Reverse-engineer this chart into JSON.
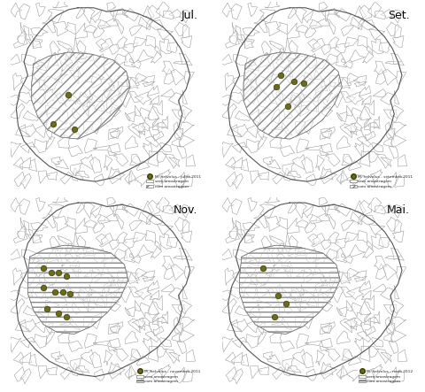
{
  "panels": [
    {
      "title": "Jul.",
      "legend_label": "M. helvolus - julho 2011",
      "points": [
        [
          0.3,
          0.52
        ],
        [
          0.22,
          0.37
        ],
        [
          0.33,
          0.34
        ]
      ],
      "hatch_style": "///",
      "hatch_region": "diagonal"
    },
    {
      "title": "Set.",
      "legend_label": "M. helvolus - setembro 2011",
      "points": [
        [
          0.3,
          0.62
        ],
        [
          0.37,
          0.59
        ],
        [
          0.42,
          0.58
        ],
        [
          0.28,
          0.56
        ],
        [
          0.34,
          0.46
        ]
      ],
      "hatch_style": "///",
      "hatch_region": "diagonal"
    },
    {
      "title": "Nov.",
      "legend_label": "M. helvolus - novembro 2011",
      "points": [
        [
          0.17,
          0.63
        ],
        [
          0.21,
          0.61
        ],
        [
          0.25,
          0.61
        ],
        [
          0.29,
          0.59
        ],
        [
          0.17,
          0.53
        ],
        [
          0.23,
          0.51
        ],
        [
          0.27,
          0.51
        ],
        [
          0.31,
          0.5
        ],
        [
          0.19,
          0.42
        ],
        [
          0.25,
          0.4
        ],
        [
          0.29,
          0.38
        ]
      ],
      "hatch_style": "===",
      "hatch_region": "horizontal"
    },
    {
      "title": "Mai.",
      "legend_label": "M. helvolus - maio 2012",
      "points": [
        [
          0.21,
          0.63
        ],
        [
          0.29,
          0.49
        ],
        [
          0.33,
          0.45
        ],
        [
          0.27,
          0.38
        ]
      ],
      "hatch_style": "===",
      "hatch_region": "horizontal"
    }
  ],
  "point_color": "#6b6b18",
  "point_edgecolor": "#3a3a08",
  "point_size": 22,
  "bg_color": "#ffffff",
  "hatch_color": "#888888",
  "legend_labels": [
    "sem amostragem",
    "com amostragem"
  ],
  "fig_bg": "#ffffff",
  "cell_edge_color": "#aaaaaa",
  "cell_fill_color": "#ffffff",
  "n_cells": 130,
  "cell_min_r": 0.018,
  "cell_max_r": 0.048
}
